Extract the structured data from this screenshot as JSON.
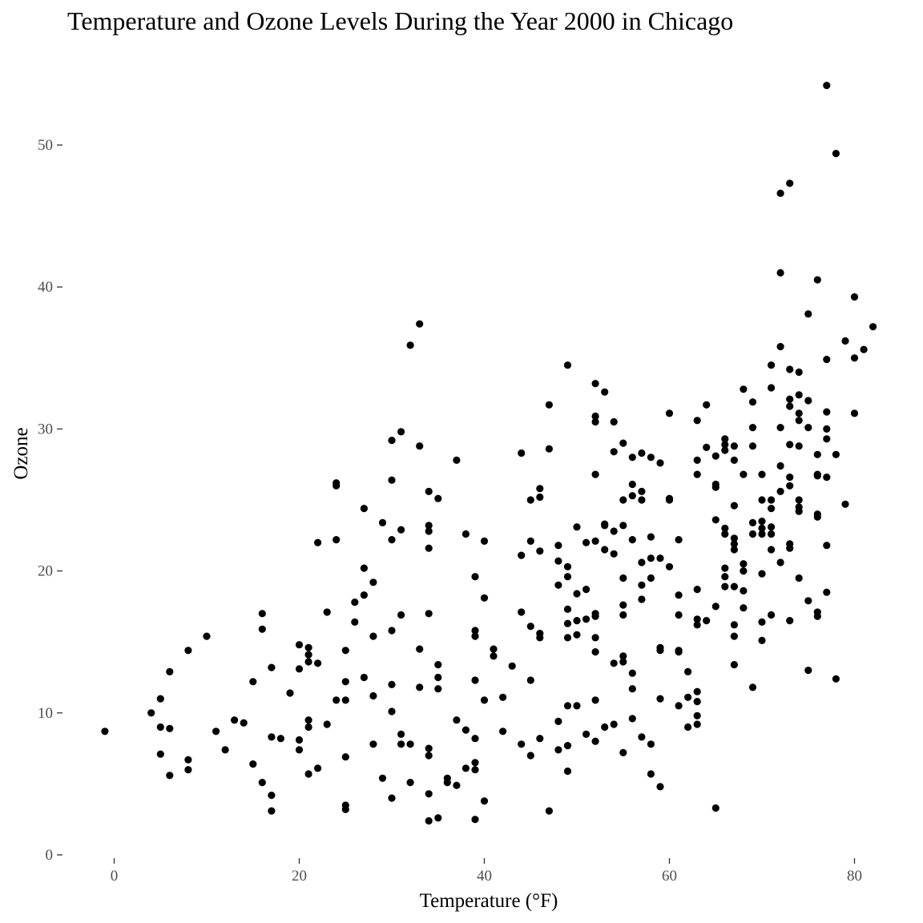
{
  "chart_data": {
    "type": "scatter",
    "title": "Temperature and Ozone Levels During the Year 2000 in Chicago",
    "xlabel": "Temperature (°F)",
    "ylabel": "Ozone",
    "xlim": [
      -5,
      83
    ],
    "ylim": [
      0,
      55
    ],
    "x_ticks": [
      0,
      20,
      40,
      60,
      80
    ],
    "y_ticks": [
      0,
      10,
      20,
      30,
      40,
      50
    ],
    "grid": false,
    "point_color": "#000000",
    "points": [
      [
        -1,
        8.7
      ],
      [
        4,
        10
      ],
      [
        5,
        11
      ],
      [
        5,
        9
      ],
      [
        5,
        7.1
      ],
      [
        6,
        12.9
      ],
      [
        6,
        8.9
      ],
      [
        6,
        5.6
      ],
      [
        8,
        14.4
      ],
      [
        8,
        6.7
      ],
      [
        8,
        6
      ],
      [
        10,
        15.4
      ],
      [
        11,
        8.7
      ],
      [
        12,
        7.4
      ],
      [
        13,
        9.5
      ],
      [
        14,
        9.3
      ],
      [
        15,
        12.2
      ],
      [
        15,
        6.4
      ],
      [
        16,
        17
      ],
      [
        16,
        15.9
      ],
      [
        16,
        5.1
      ],
      [
        17,
        13.2
      ],
      [
        17,
        8.3
      ],
      [
        17,
        4.2
      ],
      [
        17,
        3.1
      ],
      [
        18,
        8.2
      ],
      [
        19,
        11.4
      ],
      [
        20,
        14.8
      ],
      [
        20,
        13.1
      ],
      [
        20,
        8.1
      ],
      [
        20,
        7.4
      ],
      [
        21,
        14.6
      ],
      [
        21,
        14.1
      ],
      [
        21,
        13.6
      ],
      [
        21,
        9.5
      ],
      [
        21,
        9
      ],
      [
        21,
        5.7
      ],
      [
        22,
        22
      ],
      [
        22,
        13.5
      ],
      [
        22,
        6.1
      ],
      [
        23,
        17.1
      ],
      [
        23,
        9.2
      ],
      [
        24,
        26.2
      ],
      [
        24,
        26
      ],
      [
        24,
        22.2
      ],
      [
        24,
        10.9
      ],
      [
        25,
        14.4
      ],
      [
        25,
        12.2
      ],
      [
        25,
        10.9
      ],
      [
        25,
        6.9
      ],
      [
        25,
        3.5
      ],
      [
        25,
        3.2
      ],
      [
        26,
        17.8
      ],
      [
        26,
        16.4
      ],
      [
        27,
        24.4
      ],
      [
        27,
        20.2
      ],
      [
        27,
        18.3
      ],
      [
        27,
        12.5
      ],
      [
        28,
        19.2
      ],
      [
        28,
        15.4
      ],
      [
        28,
        11.2
      ],
      [
        28,
        7.8
      ],
      [
        29,
        23.4
      ],
      [
        29,
        5.4
      ],
      [
        30,
        29.2
      ],
      [
        30,
        26.4
      ],
      [
        30,
        22.2
      ],
      [
        30,
        15.8
      ],
      [
        30,
        12
      ],
      [
        30,
        10.1
      ],
      [
        30,
        4
      ],
      [
        31,
        29.8
      ],
      [
        31,
        22.9
      ],
      [
        31,
        16.9
      ],
      [
        31,
        8.5
      ],
      [
        31,
        7.8
      ],
      [
        32,
        35.9
      ],
      [
        32,
        7.8
      ],
      [
        32,
        5.1
      ],
      [
        33,
        37.4
      ],
      [
        33,
        28.8
      ],
      [
        33,
        14.5
      ],
      [
        33,
        11.8
      ],
      [
        34,
        25.6
      ],
      [
        34,
        23.2
      ],
      [
        34,
        22.8
      ],
      [
        34,
        21.6
      ],
      [
        34,
        17
      ],
      [
        34,
        7.5
      ],
      [
        34,
        7
      ],
      [
        34,
        4.3
      ],
      [
        34,
        2.4
      ],
      [
        35,
        25.1
      ],
      [
        35,
        13.4
      ],
      [
        35,
        12.5
      ],
      [
        35,
        11.7
      ],
      [
        35,
        2.6
      ],
      [
        36,
        5.4
      ],
      [
        36,
        5.1
      ],
      [
        37,
        27.8
      ],
      [
        37,
        9.5
      ],
      [
        37,
        4.9
      ],
      [
        38,
        22.6
      ],
      [
        38,
        8.8
      ],
      [
        38,
        6.1
      ],
      [
        39,
        19.6
      ],
      [
        39,
        15.8
      ],
      [
        39,
        15.4
      ],
      [
        39,
        12.3
      ],
      [
        39,
        8.2
      ],
      [
        39,
        6.5
      ],
      [
        39,
        6
      ],
      [
        39,
        2.5
      ],
      [
        40,
        22.1
      ],
      [
        40,
        18.1
      ],
      [
        40,
        10.9
      ],
      [
        40,
        3.8
      ],
      [
        41,
        14.5
      ],
      [
        41,
        14
      ],
      [
        42,
        11.1
      ],
      [
        42,
        8.7
      ],
      [
        43,
        13.3
      ],
      [
        44,
        28.3
      ],
      [
        44,
        21.1
      ],
      [
        44,
        17.1
      ],
      [
        44,
        7.8
      ],
      [
        45,
        25
      ],
      [
        45,
        22.1
      ],
      [
        45,
        16.1
      ],
      [
        45,
        12.3
      ],
      [
        45,
        7
      ],
      [
        46,
        25.8
      ],
      [
        46,
        25.2
      ],
      [
        46,
        21.4
      ],
      [
        46,
        15.6
      ],
      [
        46,
        15.3
      ],
      [
        46,
        8.2
      ],
      [
        47,
        31.7
      ],
      [
        47,
        28.6
      ],
      [
        47,
        3.1
      ],
      [
        48,
        21.8
      ],
      [
        48,
        20.7
      ],
      [
        48,
        19
      ],
      [
        48,
        9.4
      ],
      [
        48,
        7.4
      ],
      [
        49,
        34.5
      ],
      [
        49,
        20.3
      ],
      [
        49,
        19.6
      ],
      [
        49,
        17.3
      ],
      [
        49,
        16.3
      ],
      [
        49,
        15.3
      ],
      [
        49,
        10.5
      ],
      [
        49,
        7.7
      ],
      [
        49,
        5.9
      ],
      [
        50,
        23.1
      ],
      [
        50,
        18.4
      ],
      [
        50,
        16.5
      ],
      [
        50,
        15.5
      ],
      [
        50,
        10.5
      ],
      [
        51,
        22
      ],
      [
        51,
        18.7
      ],
      [
        51,
        16.6
      ],
      [
        51,
        8.5
      ],
      [
        52,
        33.2
      ],
      [
        52,
        30.9
      ],
      [
        52,
        30.5
      ],
      [
        52,
        26.8
      ],
      [
        52,
        22.1
      ],
      [
        52,
        17
      ],
      [
        52,
        16.8
      ],
      [
        52,
        15.3
      ],
      [
        52,
        14.3
      ],
      [
        52,
        10.9
      ],
      [
        52,
        8
      ],
      [
        53,
        32.6
      ],
      [
        53,
        23.3
      ],
      [
        53,
        23.2
      ],
      [
        53,
        21.5
      ],
      [
        53,
        9
      ],
      [
        54,
        30.5
      ],
      [
        54,
        28.4
      ],
      [
        54,
        22.8
      ],
      [
        54,
        21.2
      ],
      [
        54,
        13.5
      ],
      [
        54,
        9.2
      ],
      [
        55,
        29
      ],
      [
        55,
        25
      ],
      [
        55,
        23.2
      ],
      [
        55,
        19.5
      ],
      [
        55,
        17.6
      ],
      [
        55,
        16.9
      ],
      [
        55,
        14
      ],
      [
        55,
        13.6
      ],
      [
        55,
        7.2
      ],
      [
        56,
        28
      ],
      [
        56,
        26.1
      ],
      [
        56,
        25.3
      ],
      [
        56,
        22.2
      ],
      [
        56,
        12.8
      ],
      [
        56,
        11.7
      ],
      [
        56,
        9.6
      ],
      [
        57,
        28.3
      ],
      [
        57,
        25.6
      ],
      [
        57,
        25
      ],
      [
        57,
        20.6
      ],
      [
        57,
        19
      ],
      [
        57,
        18
      ],
      [
        57,
        8.3
      ],
      [
        58,
        28
      ],
      [
        58,
        22.4
      ],
      [
        58,
        20.9
      ],
      [
        58,
        19.5
      ],
      [
        58,
        7.8
      ],
      [
        58,
        5.7
      ],
      [
        59,
        27.6
      ],
      [
        59,
        20.9
      ],
      [
        59,
        14.6
      ],
      [
        59,
        14.4
      ],
      [
        59,
        11
      ],
      [
        59,
        4.8
      ],
      [
        60,
        31.1
      ],
      [
        60,
        25.1
      ],
      [
        60,
        25
      ],
      [
        60,
        20.3
      ],
      [
        61,
        22.2
      ],
      [
        61,
        18.3
      ],
      [
        61,
        16.9
      ],
      [
        61,
        14.4
      ],
      [
        61,
        14.3
      ],
      [
        61,
        10.5
      ],
      [
        62,
        12.9
      ],
      [
        62,
        11.1
      ],
      [
        62,
        9
      ],
      [
        63,
        30.6
      ],
      [
        63,
        27.8
      ],
      [
        63,
        26.8
      ],
      [
        63,
        18.7
      ],
      [
        63,
        16.6
      ],
      [
        63,
        16.2
      ],
      [
        63,
        11.5
      ],
      [
        63,
        10.8
      ],
      [
        63,
        9.8
      ],
      [
        63,
        9.2
      ],
      [
        64,
        31.7
      ],
      [
        64,
        28.7
      ],
      [
        64,
        16.5
      ],
      [
        65,
        28.1
      ],
      [
        65,
        26.1
      ],
      [
        65,
        25.9
      ],
      [
        65,
        23.6
      ],
      [
        65,
        17.5
      ],
      [
        65,
        3.3
      ],
      [
        66,
        29.3
      ],
      [
        66,
        28.9
      ],
      [
        66,
        28.5
      ],
      [
        66,
        23
      ],
      [
        66,
        22.6
      ],
      [
        66,
        20.2
      ],
      [
        66,
        19.6
      ],
      [
        66,
        18.9
      ],
      [
        67,
        28.8
      ],
      [
        67,
        27.8
      ],
      [
        67,
        24.6
      ],
      [
        67,
        22.3
      ],
      [
        67,
        21.9
      ],
      [
        67,
        21.5
      ],
      [
        67,
        18.9
      ],
      [
        67,
        16.2
      ],
      [
        67,
        15.4
      ],
      [
        67,
        13.4
      ],
      [
        68,
        32.8
      ],
      [
        68,
        26.8
      ],
      [
        68,
        20.5
      ],
      [
        68,
        20
      ],
      [
        68,
        18.6
      ],
      [
        68,
        17.4
      ],
      [
        69,
        31.9
      ],
      [
        69,
        30.1
      ],
      [
        69,
        28.8
      ],
      [
        69,
        23.4
      ],
      [
        69,
        22.6
      ],
      [
        69,
        11.8
      ],
      [
        70,
        26.8
      ],
      [
        70,
        25
      ],
      [
        70,
        23.5
      ],
      [
        70,
        23
      ],
      [
        70,
        22.6
      ],
      [
        70,
        19.8
      ],
      [
        70,
        16.4
      ],
      [
        70,
        15.1
      ],
      [
        71,
        34.5
      ],
      [
        71,
        32.9
      ],
      [
        71,
        25
      ],
      [
        71,
        24.4
      ],
      [
        71,
        23.1
      ],
      [
        71,
        22.6
      ],
      [
        71,
        21.5
      ],
      [
        71,
        16.9
      ],
      [
        72,
        46.6
      ],
      [
        72,
        41
      ],
      [
        72,
        35.8
      ],
      [
        72,
        30.1
      ],
      [
        72,
        27.4
      ],
      [
        72,
        25.6
      ],
      [
        72,
        20.6
      ],
      [
        73,
        47.3
      ],
      [
        73,
        34.2
      ],
      [
        73,
        32.1
      ],
      [
        73,
        31.6
      ],
      [
        73,
        28.9
      ],
      [
        73,
        26.6
      ],
      [
        73,
        26
      ],
      [
        73,
        21.9
      ],
      [
        73,
        21.6
      ],
      [
        73,
        16.5
      ],
      [
        74,
        34
      ],
      [
        74,
        32.4
      ],
      [
        74,
        31.1
      ],
      [
        74,
        30.6
      ],
      [
        74,
        28.8
      ],
      [
        74,
        25
      ],
      [
        74,
        24.5
      ],
      [
        74,
        24.2
      ],
      [
        74,
        19.5
      ],
      [
        75,
        38.1
      ],
      [
        75,
        32
      ],
      [
        75,
        30.1
      ],
      [
        75,
        17.9
      ],
      [
        75,
        13
      ],
      [
        76,
        40.5
      ],
      [
        76,
        28.2
      ],
      [
        76,
        26.8
      ],
      [
        76,
        26.7
      ],
      [
        76,
        24
      ],
      [
        76,
        23.8
      ],
      [
        76,
        17.1
      ],
      [
        76,
        16.8
      ],
      [
        77,
        54.2
      ],
      [
        77,
        34.9
      ],
      [
        77,
        31.2
      ],
      [
        77,
        30
      ],
      [
        77,
        29.3
      ],
      [
        77,
        26.6
      ],
      [
        77,
        21.8
      ],
      [
        77,
        18.5
      ],
      [
        78,
        49.4
      ],
      [
        78,
        28.2
      ],
      [
        78,
        12.4
      ],
      [
        79,
        36.2
      ],
      [
        79,
        24.7
      ],
      [
        80,
        39.3
      ],
      [
        80,
        35
      ],
      [
        80,
        31.1
      ],
      [
        81,
        35.6
      ],
      [
        82,
        37.2
      ]
    ]
  }
}
